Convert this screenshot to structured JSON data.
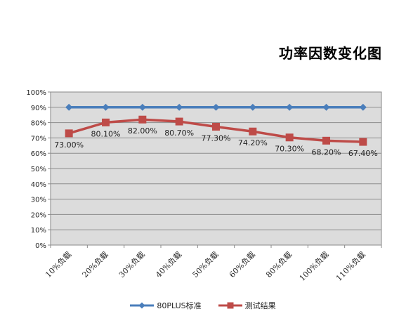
{
  "chart_data": {
    "type": "line",
    "title": "功率因数变化图",
    "categories": [
      "10%负载",
      "20%负载",
      "30%负载",
      "40%负载",
      "50%负载",
      "60%负载",
      "80%负载",
      "100%负载",
      "110%负载"
    ],
    "series": [
      {
        "name": "80PLUS标准",
        "values": [
          90,
          90,
          90,
          90,
          90,
          90,
          90,
          90,
          90
        ],
        "color": "#4a7ebb",
        "marker": "diamond"
      },
      {
        "name": "测试结果",
        "values": [
          73.0,
          80.1,
          82.0,
          80.7,
          77.3,
          74.2,
          70.3,
          68.2,
          67.4
        ],
        "color": "#be4b48",
        "marker": "square",
        "data_labels": [
          "73.00%",
          "80.10%",
          "82.00%",
          "80.70%",
          "77.30%",
          "74.20%",
          "70.30%",
          "68.20%",
          "67.40%"
        ]
      }
    ],
    "yticks": [
      "0%",
      "10%",
      "20%",
      "30%",
      "40%",
      "50%",
      "60%",
      "70%",
      "80%",
      "90%",
      "100%"
    ],
    "ylim": [
      0,
      100
    ],
    "grid": true,
    "legend_position": "bottom",
    "plot_background": "#dcdcdc"
  }
}
